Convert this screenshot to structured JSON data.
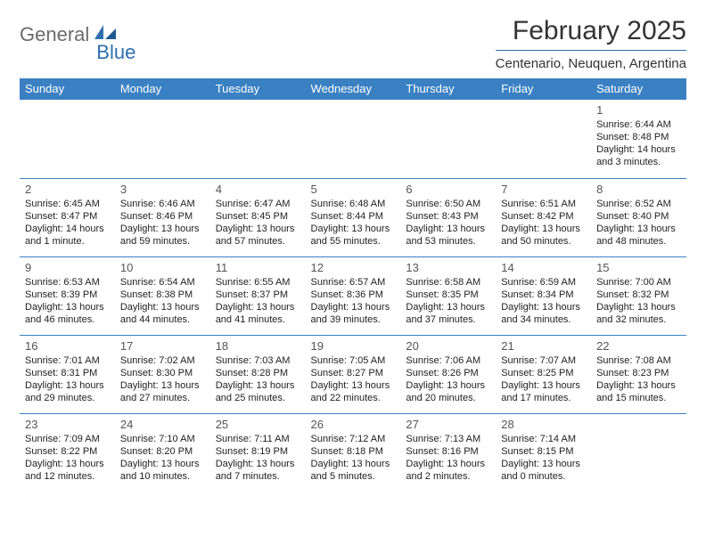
{
  "brand": {
    "part1": "General",
    "part2": "Blue"
  },
  "title": "February 2025",
  "location": "Centenario, Neuquen, Argentina",
  "colors": {
    "header_bg": "#3a80c3",
    "header_text": "#ffffff",
    "rule": "#2f6fae",
    "logo_gray": "#6b6b6b",
    "logo_blue": "#2f6fae",
    "text": "#222222",
    "daynum": "#555555",
    "background": "#ffffff"
  },
  "typography": {
    "title_fontsize": 30,
    "location_fontsize": 15,
    "weekday_fontsize": 13,
    "daynum_fontsize": 13,
    "detail_fontsize": 11
  },
  "weekdays": [
    "Sunday",
    "Monday",
    "Tuesday",
    "Wednesday",
    "Thursday",
    "Friday",
    "Saturday"
  ],
  "weeks": [
    [
      null,
      null,
      null,
      null,
      null,
      null,
      {
        "n": "1",
        "sunrise": "Sunrise: 6:44 AM",
        "sunset": "Sunset: 8:48 PM",
        "daylight": "Daylight: 14 hours and 3 minutes."
      }
    ],
    [
      {
        "n": "2",
        "sunrise": "Sunrise: 6:45 AM",
        "sunset": "Sunset: 8:47 PM",
        "daylight": "Daylight: 14 hours and 1 minute."
      },
      {
        "n": "3",
        "sunrise": "Sunrise: 6:46 AM",
        "sunset": "Sunset: 8:46 PM",
        "daylight": "Daylight: 13 hours and 59 minutes."
      },
      {
        "n": "4",
        "sunrise": "Sunrise: 6:47 AM",
        "sunset": "Sunset: 8:45 PM",
        "daylight": "Daylight: 13 hours and 57 minutes."
      },
      {
        "n": "5",
        "sunrise": "Sunrise: 6:48 AM",
        "sunset": "Sunset: 8:44 PM",
        "daylight": "Daylight: 13 hours and 55 minutes."
      },
      {
        "n": "6",
        "sunrise": "Sunrise: 6:50 AM",
        "sunset": "Sunset: 8:43 PM",
        "daylight": "Daylight: 13 hours and 53 minutes."
      },
      {
        "n": "7",
        "sunrise": "Sunrise: 6:51 AM",
        "sunset": "Sunset: 8:42 PM",
        "daylight": "Daylight: 13 hours and 50 minutes."
      },
      {
        "n": "8",
        "sunrise": "Sunrise: 6:52 AM",
        "sunset": "Sunset: 8:40 PM",
        "daylight": "Daylight: 13 hours and 48 minutes."
      }
    ],
    [
      {
        "n": "9",
        "sunrise": "Sunrise: 6:53 AM",
        "sunset": "Sunset: 8:39 PM",
        "daylight": "Daylight: 13 hours and 46 minutes."
      },
      {
        "n": "10",
        "sunrise": "Sunrise: 6:54 AM",
        "sunset": "Sunset: 8:38 PM",
        "daylight": "Daylight: 13 hours and 44 minutes."
      },
      {
        "n": "11",
        "sunrise": "Sunrise: 6:55 AM",
        "sunset": "Sunset: 8:37 PM",
        "daylight": "Daylight: 13 hours and 41 minutes."
      },
      {
        "n": "12",
        "sunrise": "Sunrise: 6:57 AM",
        "sunset": "Sunset: 8:36 PM",
        "daylight": "Daylight: 13 hours and 39 minutes."
      },
      {
        "n": "13",
        "sunrise": "Sunrise: 6:58 AM",
        "sunset": "Sunset: 8:35 PM",
        "daylight": "Daylight: 13 hours and 37 minutes."
      },
      {
        "n": "14",
        "sunrise": "Sunrise: 6:59 AM",
        "sunset": "Sunset: 8:34 PM",
        "daylight": "Daylight: 13 hours and 34 minutes."
      },
      {
        "n": "15",
        "sunrise": "Sunrise: 7:00 AM",
        "sunset": "Sunset: 8:32 PM",
        "daylight": "Daylight: 13 hours and 32 minutes."
      }
    ],
    [
      {
        "n": "16",
        "sunrise": "Sunrise: 7:01 AM",
        "sunset": "Sunset: 8:31 PM",
        "daylight": "Daylight: 13 hours and 29 minutes."
      },
      {
        "n": "17",
        "sunrise": "Sunrise: 7:02 AM",
        "sunset": "Sunset: 8:30 PM",
        "daylight": "Daylight: 13 hours and 27 minutes."
      },
      {
        "n": "18",
        "sunrise": "Sunrise: 7:03 AM",
        "sunset": "Sunset: 8:28 PM",
        "daylight": "Daylight: 13 hours and 25 minutes."
      },
      {
        "n": "19",
        "sunrise": "Sunrise: 7:05 AM",
        "sunset": "Sunset: 8:27 PM",
        "daylight": "Daylight: 13 hours and 22 minutes."
      },
      {
        "n": "20",
        "sunrise": "Sunrise: 7:06 AM",
        "sunset": "Sunset: 8:26 PM",
        "daylight": "Daylight: 13 hours and 20 minutes."
      },
      {
        "n": "21",
        "sunrise": "Sunrise: 7:07 AM",
        "sunset": "Sunset: 8:25 PM",
        "daylight": "Daylight: 13 hours and 17 minutes."
      },
      {
        "n": "22",
        "sunrise": "Sunrise: 7:08 AM",
        "sunset": "Sunset: 8:23 PM",
        "daylight": "Daylight: 13 hours and 15 minutes."
      }
    ],
    [
      {
        "n": "23",
        "sunrise": "Sunrise: 7:09 AM",
        "sunset": "Sunset: 8:22 PM",
        "daylight": "Daylight: 13 hours and 12 minutes."
      },
      {
        "n": "24",
        "sunrise": "Sunrise: 7:10 AM",
        "sunset": "Sunset: 8:20 PM",
        "daylight": "Daylight: 13 hours and 10 minutes."
      },
      {
        "n": "25",
        "sunrise": "Sunrise: 7:11 AM",
        "sunset": "Sunset: 8:19 PM",
        "daylight": "Daylight: 13 hours and 7 minutes."
      },
      {
        "n": "26",
        "sunrise": "Sunrise: 7:12 AM",
        "sunset": "Sunset: 8:18 PM",
        "daylight": "Daylight: 13 hours and 5 minutes."
      },
      {
        "n": "27",
        "sunrise": "Sunrise: 7:13 AM",
        "sunset": "Sunset: 8:16 PM",
        "daylight": "Daylight: 13 hours and 2 minutes."
      },
      {
        "n": "28",
        "sunrise": "Sunrise: 7:14 AM",
        "sunset": "Sunset: 8:15 PM",
        "daylight": "Daylight: 13 hours and 0 minutes."
      },
      null
    ]
  ]
}
